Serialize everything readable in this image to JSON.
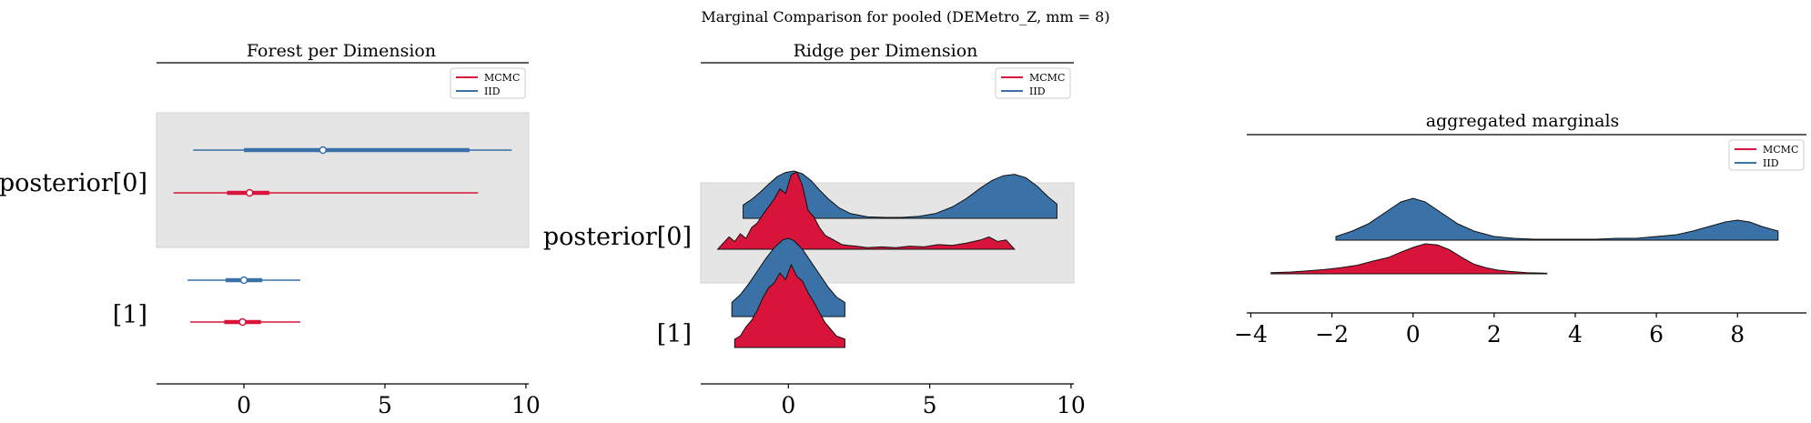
{
  "figure": {
    "suptitle": "Marginal Comparison for pooled (DEMetro_Z, mm = 8)"
  },
  "colors": {
    "mcmc": "#d8143a",
    "iid": "#3a72a8",
    "band": "#e5e5e5"
  },
  "legend": {
    "entries": [
      "MCMC",
      "IID"
    ]
  },
  "chart_data": [
    {
      "type": "forest",
      "title": "Forest per Dimension",
      "xlim": [
        -3.1,
        10.1
      ],
      "xticks": [
        0,
        5,
        10
      ],
      "tick_labels": [
        "0",
        "5",
        "10"
      ],
      "rows": [
        "posterior[0]",
        "[1]"
      ],
      "series": [
        {
          "name": "MCMC",
          "intervals": [
            {
              "row": "posterior[0]",
              "lo": -2.5,
              "q1": -0.6,
              "median": 0.2,
              "q3": 0.9,
              "hi": 8.3
            },
            {
              "row": "[1]",
              "lo": -1.9,
              "q1": -0.7,
              "median": -0.05,
              "q3": 0.6,
              "hi": 2.0
            }
          ]
        },
        {
          "name": "IID",
          "intervals": [
            {
              "row": "posterior[0]",
              "lo": -1.8,
              "q1": 0.0,
              "median": 2.8,
              "q3": 8.0,
              "hi": 9.5
            },
            {
              "row": "[1]",
              "lo": -2.0,
              "q1": -0.65,
              "median": 0.0,
              "q3": 0.65,
              "hi": 2.0
            }
          ]
        }
      ]
    },
    {
      "type": "ridge",
      "title": "Ridge per Dimension",
      "xlim": [
        -3.1,
        10.1
      ],
      "xticks": [
        0,
        5,
        10
      ],
      "tick_labels": [
        "0",
        "5",
        "10"
      ],
      "rows": [
        "posterior[0]",
        "[1]"
      ],
      "series": [
        {
          "name": "MCMC",
          "densities": [
            {
              "row": "posterior[0]",
              "x": [
                -2.5,
                -2.3,
                -2.1,
                -1.9,
                -1.7,
                -1.5,
                -1.3,
                -1.1,
                -0.9,
                -0.7,
                -0.5,
                -0.3,
                -0.1,
                0.1,
                0.3,
                0.5,
                0.7,
                0.9,
                1.1,
                1.3,
                1.5,
                1.7,
                1.9,
                2.1,
                2.4,
                2.8,
                3.3,
                3.8,
                4.3,
                4.8,
                5.3,
                5.8,
                6.3,
                6.8,
                7.1,
                7.4,
                7.7,
                8.0
              ],
              "y": [
                0.0,
                0.08,
                0.16,
                0.1,
                0.2,
                0.14,
                0.28,
                0.34,
                0.45,
                0.55,
                0.65,
                0.78,
                0.72,
                0.96,
                1.0,
                0.82,
                0.5,
                0.42,
                0.28,
                0.18,
                0.14,
                0.1,
                0.06,
                0.05,
                0.04,
                0.02,
                0.03,
                0.02,
                0.04,
                0.03,
                0.06,
                0.05,
                0.08,
                0.12,
                0.16,
                0.1,
                0.12,
                0.0
              ]
            },
            {
              "row": "[1]",
              "x": [
                -1.9,
                -1.7,
                -1.5,
                -1.3,
                -1.1,
                -0.9,
                -0.7,
                -0.5,
                -0.3,
                -0.1,
                0.1,
                0.3,
                0.5,
                0.7,
                0.9,
                1.1,
                1.3,
                1.5,
                1.7,
                2.0
              ],
              "y": [
                0.1,
                0.14,
                0.25,
                0.33,
                0.45,
                0.6,
                0.72,
                0.78,
                0.9,
                0.82,
                1.0,
                0.86,
                0.8,
                0.66,
                0.55,
                0.42,
                0.3,
                0.22,
                0.14,
                0.1
              ]
            }
          ]
        },
        {
          "name": "IID",
          "densities": [
            {
              "row": "posterior[0]",
              "x": [
                -1.6,
                -1.3,
                -1.0,
                -0.7,
                -0.4,
                -0.1,
                0.2,
                0.5,
                0.8,
                1.1,
                1.4,
                1.8,
                2.2,
                2.8,
                3.4,
                4.0,
                4.6,
                5.2,
                5.8,
                6.3,
                6.8,
                7.2,
                7.6,
                8.0,
                8.4,
                8.8,
                9.2,
                9.5
              ],
              "y": [
                0.28,
                0.4,
                0.55,
                0.72,
                0.88,
                0.97,
                1.0,
                0.94,
                0.8,
                0.6,
                0.42,
                0.22,
                0.1,
                0.03,
                0.02,
                0.02,
                0.04,
                0.1,
                0.24,
                0.42,
                0.64,
                0.8,
                0.9,
                0.93,
                0.86,
                0.68,
                0.45,
                0.3
              ]
            },
            {
              "row": "[1]",
              "x": [
                -2.0,
                -1.7,
                -1.4,
                -1.1,
                -0.8,
                -0.5,
                -0.2,
                0.0,
                0.2,
                0.5,
                0.8,
                1.1,
                1.4,
                1.7,
                2.0
              ],
              "y": [
                0.18,
                0.28,
                0.42,
                0.58,
                0.74,
                0.88,
                0.98,
                1.0,
                0.97,
                0.86,
                0.7,
                0.54,
                0.38,
                0.25,
                0.18
              ]
            }
          ]
        }
      ]
    },
    {
      "type": "area",
      "title": "aggregated marginals",
      "xlim": [
        -4.1,
        9.7
      ],
      "xticks": [
        -4,
        -2,
        0,
        2,
        4,
        6,
        8
      ],
      "tick_labels": [
        "−4",
        "−2",
        "0",
        "2",
        "4",
        "6",
        "8"
      ],
      "series": [
        {
          "name": "MCMC",
          "x": [
            -3.5,
            -3.0,
            -2.6,
            -2.2,
            -1.8,
            -1.4,
            -1.0,
            -0.6,
            -0.3,
            0.0,
            0.3,
            0.6,
            0.9,
            1.2,
            1.5,
            1.8,
            2.1,
            2.4,
            2.8,
            3.3
          ],
          "y": [
            0.04,
            0.06,
            0.1,
            0.14,
            0.2,
            0.28,
            0.42,
            0.55,
            0.72,
            0.88,
            1.0,
            0.96,
            0.8,
            0.55,
            0.32,
            0.2,
            0.12,
            0.08,
            0.04,
            0.02
          ]
        },
        {
          "name": "IID",
          "x": [
            -1.9,
            -1.5,
            -1.1,
            -0.7,
            -0.3,
            0.0,
            0.3,
            0.7,
            1.1,
            1.5,
            2.0,
            2.5,
            3.0,
            3.5,
            4.0,
            4.5,
            5.0,
            5.5,
            6.0,
            6.5,
            6.9,
            7.3,
            7.7,
            8.0,
            8.3,
            8.6,
            9.0
          ],
          "y": [
            0.04,
            0.1,
            0.18,
            0.3,
            0.42,
            0.46,
            0.42,
            0.3,
            0.18,
            0.1,
            0.04,
            0.02,
            0.01,
            0.01,
            0.01,
            0.01,
            0.02,
            0.02,
            0.04,
            0.06,
            0.1,
            0.15,
            0.2,
            0.22,
            0.2,
            0.15,
            0.1
          ]
        }
      ]
    }
  ]
}
